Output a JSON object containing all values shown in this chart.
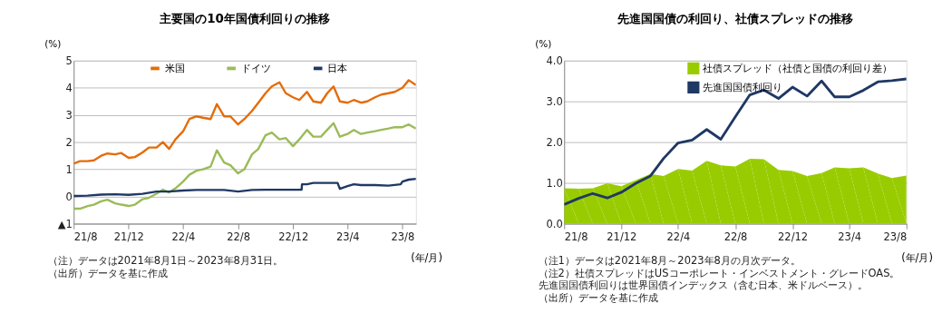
{
  "chart_data": [
    {
      "type": "line",
      "title": "主要国の10年国債利回りの推移",
      "ylabel": "(%)",
      "xlabel": "(年/月)",
      "xlim": [
        "2021-08-01",
        "2023-08-31"
      ],
      "xticks": [
        {
          "value": "2021-08-01",
          "label": "21/8"
        },
        {
          "value": "2021-12-01",
          "label": "21/12"
        },
        {
          "value": "2022-04-01",
          "label": "22/4"
        },
        {
          "value": "2022-08-01",
          "label": "22/8"
        },
        {
          "value": "2022-12-01",
          "label": "22/12"
        },
        {
          "value": "2023-04-01",
          "label": "23/4"
        },
        {
          "value": "2023-08-01",
          "label": "23/8"
        }
      ],
      "ylim": [
        -1,
        5
      ],
      "yticks": [
        {
          "value": -1,
          "label": "▲1"
        },
        0,
        1,
        2,
        3,
        4,
        5
      ],
      "grid": "y",
      "legend": "top",
      "annotations": [
        "（注）データは2021年8月1日～2023年8月31日。",
        "（出所）データを基に作成"
      ],
      "x": [
        "2021-08-01",
        "2021-08-15",
        "2021-09-01",
        "2021-09-15",
        "2021-10-01",
        "2021-10-15",
        "2021-11-01",
        "2021-11-15",
        "2021-12-01",
        "2021-12-15",
        "2022-01-01",
        "2022-01-15",
        "2022-02-01",
        "2022-02-15",
        "2022-03-01",
        "2022-03-15",
        "2022-04-01",
        "2022-04-15",
        "2022-05-01",
        "2022-05-15",
        "2022-06-01",
        "2022-06-15",
        "2022-07-01",
        "2022-07-15",
        "2022-08-01",
        "2022-08-15",
        "2022-09-01",
        "2022-09-15",
        "2022-10-01",
        "2022-10-15",
        "2022-11-01",
        "2022-11-15",
        "2022-12-01",
        "2022-12-15",
        "2023-01-01",
        "2023-01-15",
        "2023-02-01",
        "2023-02-15",
        "2023-03-01",
        "2023-03-15",
        "2023-04-01",
        "2023-04-15",
        "2023-05-01",
        "2023-05-15",
        "2023-06-01",
        "2023-06-15",
        "2023-07-01",
        "2023-07-15",
        "2023-08-01",
        "2023-08-15",
        "2023-08-31"
      ],
      "series": [
        {
          "name": "米国",
          "color": "#e46c0a",
          "values": [
            1.21,
            1.3,
            1.3,
            1.33,
            1.5,
            1.58,
            1.55,
            1.6,
            1.42,
            1.45,
            1.62,
            1.8,
            1.8,
            2.0,
            1.75,
            2.1,
            2.4,
            2.85,
            2.95,
            2.9,
            2.85,
            3.4,
            2.95,
            2.95,
            2.65,
            2.85,
            3.15,
            3.45,
            3.8,
            4.05,
            4.2,
            3.8,
            3.65,
            3.55,
            3.85,
            3.5,
            3.45,
            3.8,
            4.05,
            3.5,
            3.45,
            3.55,
            3.45,
            3.5,
            3.65,
            3.75,
            3.8,
            3.85,
            4.0,
            4.28,
            4.1
          ]
        },
        {
          "name": "ドイツ",
          "color": "#9bbb59",
          "values": [
            -0.45,
            -0.45,
            -0.35,
            -0.3,
            -0.18,
            -0.12,
            -0.25,
            -0.3,
            -0.35,
            -0.3,
            -0.1,
            -0.05,
            0.1,
            0.25,
            0.15,
            0.3,
            0.55,
            0.8,
            0.95,
            1.0,
            1.1,
            1.7,
            1.25,
            1.15,
            0.85,
            1.0,
            1.55,
            1.75,
            2.25,
            2.35,
            2.1,
            2.15,
            1.85,
            2.1,
            2.45,
            2.2,
            2.2,
            2.45,
            2.7,
            2.2,
            2.3,
            2.45,
            2.3,
            2.35,
            2.4,
            2.45,
            2.5,
            2.55,
            2.55,
            2.65,
            2.5
          ]
        },
        {
          "name": "日本",
          "color": "#1f3864",
          "x": [
            "2021-08-01",
            "2021-09-01",
            "2021-10-01",
            "2021-11-01",
            "2021-12-01",
            "2022-01-01",
            "2022-02-01",
            "2022-03-01",
            "2022-04-01",
            "2022-05-01",
            "2022-06-01",
            "2022-07-01",
            "2022-08-01",
            "2022-09-01",
            "2022-10-01",
            "2022-11-01",
            "2022-12-01",
            "2022-12-20",
            "2022-12-21",
            "2023-01-01",
            "2023-01-15",
            "2023-02-01",
            "2023-03-01",
            "2023-03-10",
            "2023-03-15",
            "2023-04-01",
            "2023-04-15",
            "2023-05-01",
            "2023-06-01",
            "2023-07-01",
            "2023-07-28",
            "2023-08-01",
            "2023-08-15",
            "2023-08-31"
          ],
          "values": [
            0.02,
            0.03,
            0.07,
            0.08,
            0.06,
            0.1,
            0.18,
            0.18,
            0.22,
            0.24,
            0.24,
            0.24,
            0.18,
            0.24,
            0.25,
            0.25,
            0.25,
            0.25,
            0.45,
            0.45,
            0.5,
            0.5,
            0.5,
            0.5,
            0.28,
            0.38,
            0.45,
            0.42,
            0.42,
            0.4,
            0.45,
            0.55,
            0.62,
            0.65
          ]
        }
      ]
    },
    {
      "type": "line",
      "title": "先進国国債の利回り、社債スプレッドの推移",
      "ylabel": "(%)",
      "xlabel": "(年/月)",
      "xlim": [
        "2021-08",
        "2023-08"
      ],
      "xticks": [
        {
          "value": "2021-08",
          "label": "21/8"
        },
        {
          "value": "2021-12",
          "label": "21/12"
        },
        {
          "value": "2022-04",
          "label": "22/4"
        },
        {
          "value": "2022-08",
          "label": "22/8"
        },
        {
          "value": "2022-12",
          "label": "22/12"
        },
        {
          "value": "2023-04",
          "label": "23/4"
        },
        {
          "value": "2023-08",
          "label": "23/8"
        }
      ],
      "ylim": [
        0,
        4
      ],
      "yticks": [
        {
          "value": 0,
          "label": "0.0"
        },
        {
          "value": 1,
          "label": "1.0"
        },
        {
          "value": 2,
          "label": "2.0"
        },
        {
          "value": 3,
          "label": "3.0"
        },
        {
          "value": 4,
          "label": "4.0"
        }
      ],
      "grid": "y",
      "legend": "top right",
      "annotations": [
        "（注1）データは2021年8月～2023年8月の月次データ。",
        "（注2）社債スプレッドはUSコーポレート・インベストメント・グレードOAS。",
        "　　　　先進国国債利回りは世界国債インデックス（含む日本、米ドルベース）。",
        "（出所）データを基に作成"
      ],
      "x": [
        "2021-08",
        "2021-09",
        "2021-10",
        "2021-11",
        "2021-12",
        "2022-01",
        "2022-02",
        "2022-03",
        "2022-04",
        "2022-05",
        "2022-06",
        "2022-07",
        "2022-08",
        "2022-09",
        "2022-10",
        "2022-11",
        "2022-12",
        "2023-01",
        "2023-02",
        "2023-03",
        "2023-04",
        "2023-05",
        "2023-06",
        "2023-07",
        "2023-08"
      ],
      "series": [
        {
          "name": "社債スプレッド（社債と国債の利回り差）",
          "type": "area",
          "color": "#99cc00",
          "values": [
            0.87,
            0.86,
            0.87,
            0.99,
            0.92,
            1.07,
            1.22,
            1.17,
            1.34,
            1.3,
            1.54,
            1.43,
            1.4,
            1.59,
            1.58,
            1.32,
            1.29,
            1.17,
            1.24,
            1.38,
            1.36,
            1.38,
            1.23,
            1.12,
            1.18
          ]
        },
        {
          "name": "先進国国債利回り",
          "color": "#1f3864",
          "values": [
            0.47,
            0.62,
            0.74,
            0.63,
            0.77,
            0.99,
            1.17,
            1.6,
            1.98,
            2.05,
            2.31,
            2.07,
            2.62,
            3.16,
            3.28,
            3.07,
            3.35,
            3.13,
            3.5,
            3.11,
            3.11,
            3.27,
            3.48,
            3.51,
            3.55
          ]
        }
      ]
    }
  ]
}
